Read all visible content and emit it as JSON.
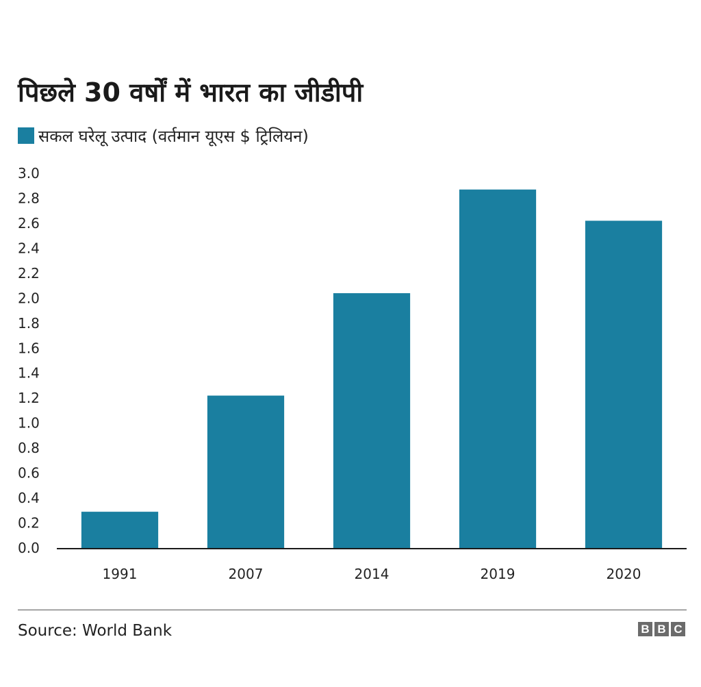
{
  "chart_data": {
    "type": "bar",
    "title": "पिछले 30 वर्षों में भारत का जीडीपी",
    "categories": [
      "1991",
      "2007",
      "2014",
      "2019",
      "2020"
    ],
    "series": [
      {
        "name": "सकल घरेलू उत्पाद (वर्तमान यूएस $ ट्रिलियन)",
        "values": [
          0.29,
          1.22,
          2.04,
          2.87,
          2.62
        ]
      }
    ],
    "ylim": [
      0,
      3.0
    ],
    "yticks": [
      "0.0",
      "0.2",
      "0.4",
      "0.6",
      "0.8",
      "1.0",
      "1.2",
      "1.4",
      "1.6",
      "1.8",
      "2.0",
      "2.2",
      "2.4",
      "2.6",
      "2.8",
      "3.0"
    ],
    "xlabel": "",
    "ylabel": "",
    "grid": false,
    "legend_position": "top-left"
  },
  "colors": {
    "bar": "#1a7fa0",
    "axis": "#1a1a1a"
  },
  "footer": {
    "source": "Source: World Bank",
    "logo_letters": [
      "B",
      "B",
      "C"
    ]
  }
}
